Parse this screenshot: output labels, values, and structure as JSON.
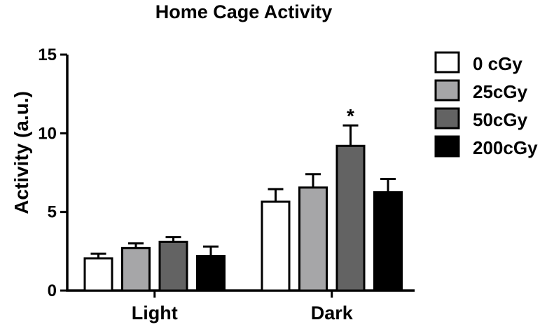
{
  "chart_data": {
    "type": "bar",
    "title": "Home Cage Activity",
    "xlabel": "",
    "ylabel": "Activity (a.u.)",
    "ylim": [
      0,
      15
    ],
    "yticks": [
      0,
      5,
      10,
      15
    ],
    "categories": [
      "Light",
      "Dark"
    ],
    "series": [
      {
        "name": "0 cGy",
        "color": "#ffffff",
        "values": [
          2.05,
          5.65
        ],
        "errors": [
          0.3,
          0.8
        ]
      },
      {
        "name": "25cGy",
        "color": "#a6a6a8",
        "values": [
          2.7,
          6.55
        ],
        "errors": [
          0.3,
          0.85
        ]
      },
      {
        "name": "50cGy",
        "color": "#636363",
        "values": [
          3.1,
          9.2
        ],
        "errors": [
          0.3,
          1.3
        ]
      },
      {
        "name": "200cGy",
        "color": "#000000",
        "values": [
          2.2,
          6.25
        ],
        "errors": [
          0.6,
          0.85
        ]
      }
    ],
    "annotations": [
      {
        "text": "*",
        "category": "Dark",
        "series": "50cGy"
      }
    ],
    "legend_position": "top-right",
    "grid": false
  }
}
